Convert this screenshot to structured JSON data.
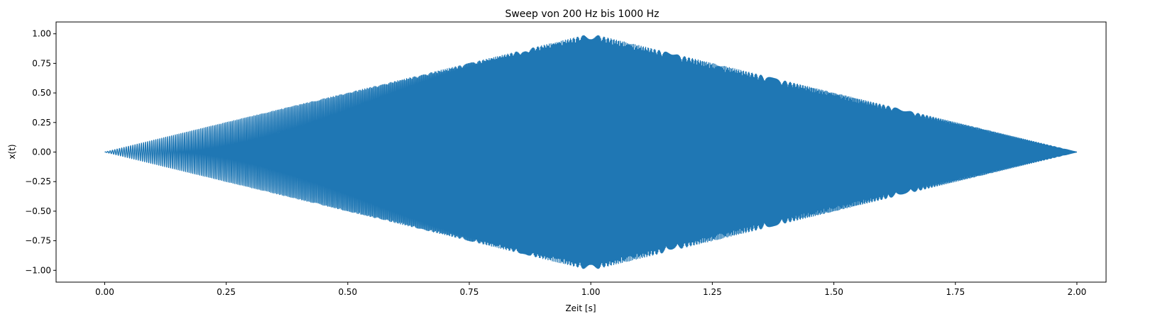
{
  "chart_data": {
    "type": "line",
    "title": "Sweep von 200 Hz bis 1000 Hz",
    "xlabel": "Zeit [s]",
    "ylabel": "x(t)",
    "xlim": [
      -0.1,
      2.06
    ],
    "ylim": [
      -1.1,
      1.1
    ],
    "x_ticks": [
      0.0,
      0.25,
      0.5,
      0.75,
      1.0,
      1.25,
      1.5,
      1.75,
      2.0
    ],
    "x_tick_labels": [
      "0.00",
      "0.25",
      "0.50",
      "0.75",
      "1.00",
      "1.25",
      "1.50",
      "1.75",
      "2.00"
    ],
    "y_ticks": [
      1.0,
      0.75,
      0.5,
      0.25,
      0.0,
      -0.25,
      -0.5,
      -0.75,
      -1.0
    ],
    "y_tick_labels": [
      "1.00",
      "0.75",
      "0.50",
      "0.25",
      "0.00",
      "−0.25",
      "−0.50",
      "−0.75",
      "−1.00"
    ],
    "grid": false,
    "series": [
      {
        "color": "#1f77b4",
        "duration_s": 2.0,
        "f_start_hz": 200,
        "f_end_hz": 1000,
        "envelope": {
          "x": [
            0.0,
            1.0,
            2.0
          ],
          "amplitude": [
            0.0,
            1.0,
            0.0
          ]
        }
      }
    ]
  }
}
